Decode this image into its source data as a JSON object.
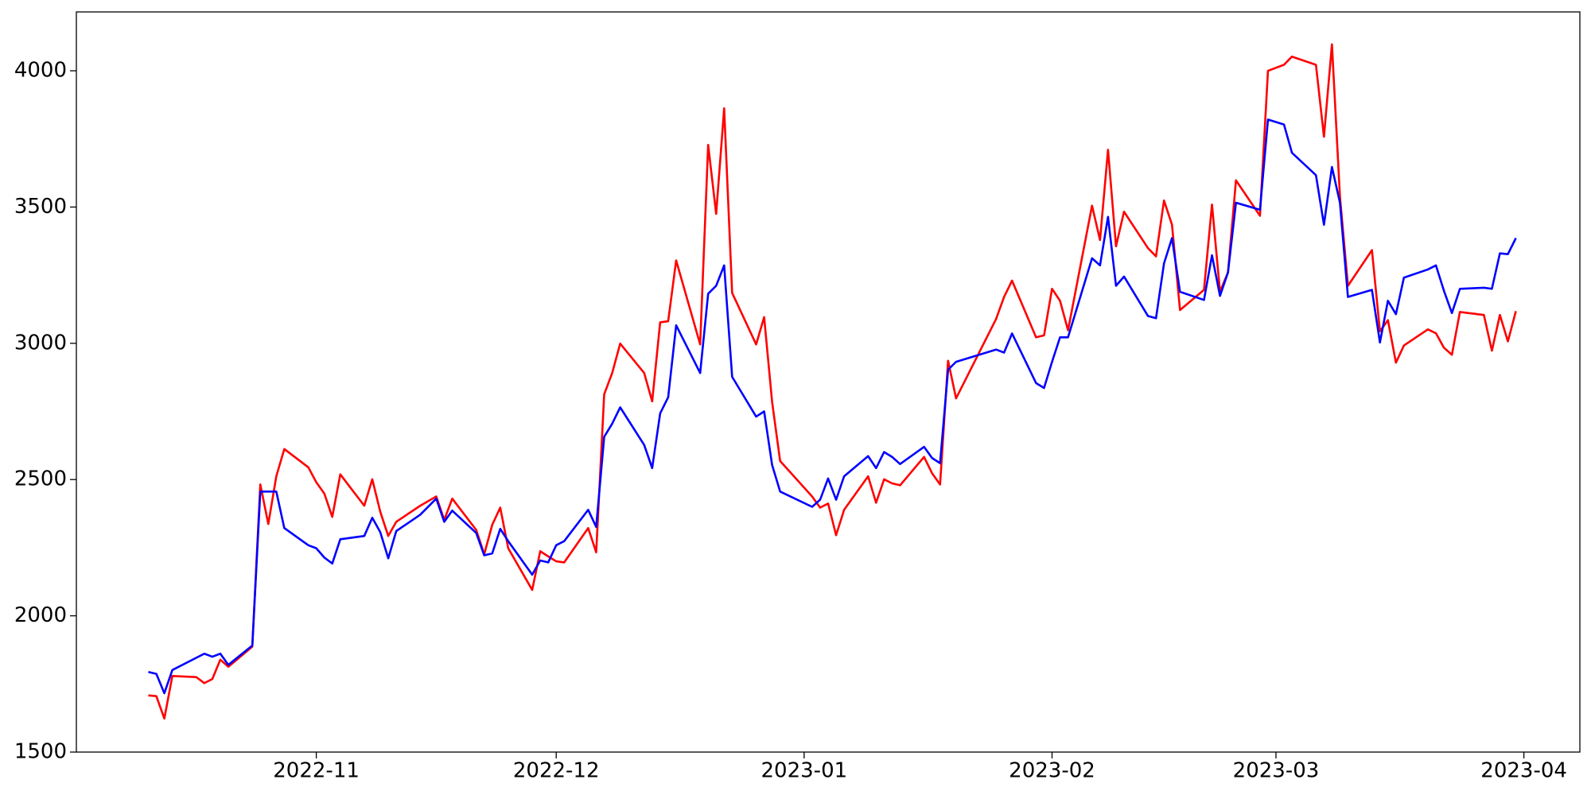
{
  "chart_data": {
    "type": "line",
    "x": [
      "2022-10-11",
      "2022-10-12",
      "2022-10-13",
      "2022-10-14",
      "2022-10-17",
      "2022-10-18",
      "2022-10-19",
      "2022-10-20",
      "2022-10-21",
      "2022-10-24",
      "2022-10-25",
      "2022-10-26",
      "2022-10-27",
      "2022-10-28",
      "2022-10-31",
      "2022-11-01",
      "2022-11-02",
      "2022-11-03",
      "2022-11-04",
      "2022-11-07",
      "2022-11-08",
      "2022-11-09",
      "2022-11-10",
      "2022-11-11",
      "2022-11-14",
      "2022-11-16",
      "2022-11-17",
      "2022-11-18",
      "2022-11-21",
      "2022-11-22",
      "2022-11-23",
      "2022-11-24",
      "2022-11-25",
      "2022-11-28",
      "2022-11-29",
      "2022-11-30",
      "2022-12-01",
      "2022-12-02",
      "2022-12-05",
      "2022-12-06",
      "2022-12-07",
      "2022-12-08",
      "2022-12-09",
      "2022-12-12",
      "2022-12-13",
      "2022-12-14",
      "2022-12-15",
      "2022-12-16",
      "2022-12-19",
      "2022-12-20",
      "2022-12-21",
      "2022-12-22",
      "2022-12-23",
      "2022-12-26",
      "2022-12-27",
      "2022-12-28",
      "2022-12-29",
      "2023-01-02",
      "2023-01-03",
      "2023-01-04",
      "2023-01-05",
      "2023-01-06",
      "2023-01-09",
      "2023-01-10",
      "2023-01-11",
      "2023-01-12",
      "2023-01-13",
      "2023-01-16",
      "2023-01-17",
      "2023-01-18",
      "2023-01-19",
      "2023-01-20",
      "2023-01-25",
      "2023-01-26",
      "2023-01-27",
      "2023-01-30",
      "2023-01-31",
      "2023-02-01",
      "2023-02-02",
      "2023-02-03",
      "2023-02-06",
      "2023-02-07",
      "2023-02-08",
      "2023-02-09",
      "2023-02-10",
      "2023-02-13",
      "2023-02-14",
      "2023-02-15",
      "2023-02-16",
      "2023-02-17",
      "2023-02-20",
      "2023-02-21",
      "2023-02-22",
      "2023-02-23",
      "2023-02-24",
      "2023-02-27",
      "2023-02-28",
      "2023-03-02",
      "2023-03-03",
      "2023-03-06",
      "2023-03-07",
      "2023-03-08",
      "2023-03-09",
      "2023-03-10",
      "2023-03-13",
      "2023-03-14",
      "2023-03-15",
      "2023-03-16",
      "2023-03-17",
      "2023-03-20",
      "2023-03-21",
      "2023-03-22",
      "2023-03-23",
      "2023-03-24",
      "2023-03-27",
      "2023-03-28",
      "2023-03-29",
      "2023-03-30",
      "2023-03-31"
    ],
    "series": [
      {
        "color": "#ff0000",
        "values": [
          1708,
          1705,
          1623,
          1779,
          1775,
          1753,
          1768,
          1839,
          1813,
          1887,
          2482,
          2337,
          2512,
          2612,
          2545,
          2490,
          2449,
          2363,
          2519,
          2404,
          2501,
          2382,
          2293,
          2345,
          2404,
          2438,
          2352,
          2430,
          2315,
          2226,
          2334,
          2397,
          2248,
          2095,
          2237,
          2218,
          2200,
          2196,
          2322,
          2233,
          2813,
          2891,
          2999,
          2891,
          2787,
          3077,
          3081,
          3304,
          2996,
          3728,
          3475,
          3862,
          3185,
          2996,
          3096,
          2784,
          2568,
          2438,
          2397,
          2412,
          2296,
          2389,
          2512,
          2415,
          2501,
          2486,
          2479,
          2583,
          2523,
          2482,
          2936,
          2798,
          3089,
          3170,
          3230,
          3022,
          3029,
          3200,
          3156,
          3048,
          3505,
          3379,
          3710,
          3356,
          3483,
          3349,
          3319,
          3524,
          3435,
          3122,
          3196,
          3509,
          3189,
          3260,
          3598,
          3468,
          4000,
          4022,
          4052,
          4022,
          3758,
          4097,
          3539,
          3211,
          3342,
          3044,
          3085,
          2929,
          2992,
          3051,
          3037,
          2984,
          2958,
          3115,
          3104,
          2973,
          3104,
          3007,
          3118
        ]
      },
      {
        "color": "#0000ff",
        "values": [
          1794,
          1787,
          1716,
          1801,
          1846,
          1861,
          1850,
          1861,
          1820,
          1891,
          2456,
          2456,
          2456,
          2322,
          2259,
          2248,
          2214,
          2192,
          2281,
          2293,
          2360,
          2307,
          2211,
          2311,
          2371,
          2430,
          2345,
          2386,
          2304,
          2222,
          2229,
          2319,
          2274,
          2151,
          2203,
          2196,
          2259,
          2274,
          2389,
          2326,
          2657,
          2705,
          2765,
          2627,
          2542,
          2743,
          2802,
          3066,
          2891,
          3182,
          3211,
          3286,
          2877,
          2731,
          2750,
          2553,
          2456,
          2400,
          2426,
          2504,
          2426,
          2512,
          2586,
          2542,
          2601,
          2583,
          2557,
          2620,
          2579,
          2560,
          2903,
          2932,
          2977,
          2966,
          3036,
          2854,
          2836,
          2932,
          3022,
          3022,
          3312,
          3286,
          3464,
          3211,
          3245,
          3100,
          3092,
          3293,
          3386,
          3189,
          3159,
          3323,
          3174,
          3260,
          3516,
          3490,
          3821,
          3803,
          3699,
          3617,
          3435,
          3647,
          3516,
          3170,
          3196,
          3003,
          3156,
          3107,
          3241,
          3271,
          3286,
          3193,
          3111,
          3200,
          3204,
          3200,
          3330,
          3327,
          3386
        ]
      }
    ],
    "xlim": [
      "2022-10-02",
      "2023-04-08"
    ],
    "xticks": [
      {
        "value": "2022-11-01",
        "label": "2022-11"
      },
      {
        "value": "2022-12-01",
        "label": "2022-12"
      },
      {
        "value": "2023-01-01",
        "label": "2023-01"
      },
      {
        "value": "2023-02-01",
        "label": "2023-02"
      },
      {
        "value": "2023-03-01",
        "label": "2023-03"
      },
      {
        "value": "2023-04-01",
        "label": "2023-04"
      }
    ],
    "ylim": [
      1500,
      4216
    ],
    "yticks": [
      1500,
      2000,
      2500,
      3000,
      3500,
      4000
    ],
    "grid": false
  }
}
